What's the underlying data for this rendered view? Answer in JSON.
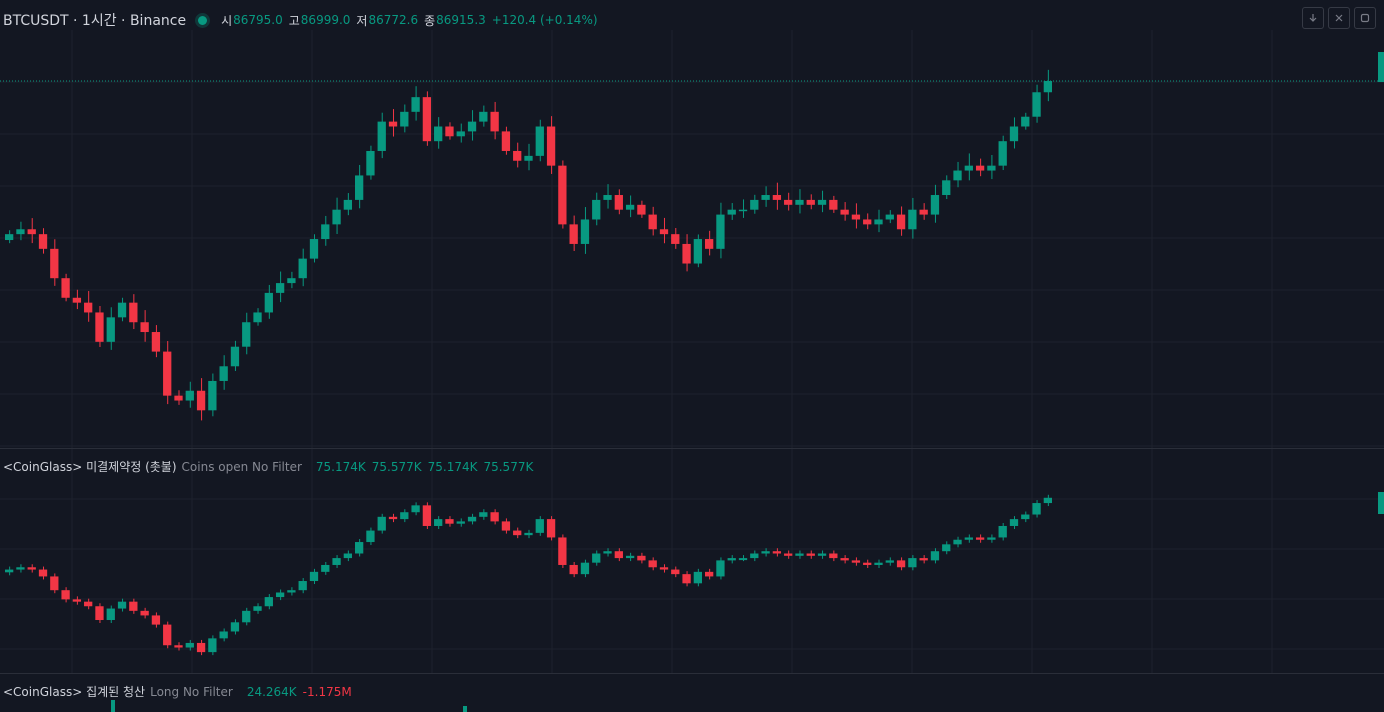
{
  "header": {
    "symbol": "BTCUSDT · 1시간 · Binance",
    "open_label": "시",
    "open": "86795.0",
    "high_label": "고",
    "high": "86999.0",
    "low_label": "저",
    "low": "86772.6",
    "close_label": "종",
    "close": "86915.3",
    "change": "+120.4 (+0.14%)"
  },
  "toolbar": {
    "collapse_icon": "arrow-down-icon",
    "close_icon": "close-icon",
    "maximize_icon": "maximize-icon"
  },
  "oi_indicator": {
    "name": "<CoinGlass> 미결제약정 (촛불)",
    "desc": "Coins open No Filter",
    "values": [
      "75.174K",
      "75.577K",
      "75.174K",
      "75.577K"
    ]
  },
  "liq_indicator": {
    "name": "<CoinGlass> 집계된 청산",
    "desc": "Long No Filter",
    "long_value": "24.264K",
    "short_value": "-1.175M"
  },
  "colors": {
    "up": "#089981",
    "down": "#f23645",
    "bg": "#131722",
    "grid": "#1e222d"
  },
  "chart_data": [
    {
      "type": "candlestick",
      "title": "BTCUSDT · 1시간 · Binance",
      "close_series_approx": [
        85350,
        85400,
        85350,
        85200,
        84900,
        84700,
        84650,
        84550,
        84250,
        84500,
        84650,
        84450,
        84350,
        84150,
        83700,
        83650,
        83750,
        83550,
        83850,
        84000,
        84200,
        84450,
        84550,
        84750,
        84850,
        84900,
        85100,
        85300,
        85450,
        85600,
        85700,
        85950,
        86200,
        86500,
        86450,
        86600,
        86750,
        86300,
        86450,
        86350,
        86400,
        86500,
        86600,
        86400,
        86200,
        86100,
        86150,
        86450,
        86050,
        85450,
        85250,
        85500,
        85700,
        85750,
        85600,
        85650,
        85550,
        85400,
        85350,
        85250,
        85050,
        85300,
        85200,
        85550,
        85600,
        85600,
        85700,
        85750,
        85700,
        85650,
        85700,
        85650,
        85700,
        85600,
        85550,
        85500,
        85450,
        85500,
        85550,
        85400,
        85600,
        85550,
        85750,
        85900,
        86000,
        86050,
        86000,
        86050,
        86300,
        86450,
        86550,
        86800,
        86915
      ]
    },
    {
      "type": "candlestick",
      "title": "<CoinGlass> 미결제약정 (촛불)",
      "ohlc_last": [
        75.174,
        75.577,
        75.174,
        75.577
      ],
      "unit": "K"
    }
  ]
}
